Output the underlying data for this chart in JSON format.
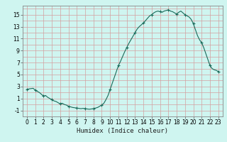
{
  "title": "",
  "xlabel": "Humidex (Indice chaleur)",
  "ylabel": "",
  "bg_color": "#cff5f0",
  "grid_color_minor": "#d4a0a0",
  "line_color": "#1a6b5a",
  "marker_color": "#1a6b5a",
  "xlim": [
    -0.5,
    23.5
  ],
  "ylim": [
    -2,
    16.5
  ],
  "yticks": [
    -1,
    1,
    3,
    5,
    7,
    9,
    11,
    13,
    15
  ],
  "xticks": [
    0,
    1,
    2,
    3,
    4,
    5,
    6,
    7,
    8,
    9,
    10,
    11,
    12,
    13,
    14,
    15,
    16,
    17,
    18,
    19,
    20,
    21,
    22,
    23
  ],
  "x": [
    0,
    0.25,
    0.5,
    0.75,
    1,
    1.25,
    1.5,
    1.75,
    2,
    2.25,
    2.5,
    2.75,
    3,
    3.25,
    3.5,
    3.75,
    4,
    4.25,
    4.5,
    4.75,
    5,
    5.25,
    5.5,
    5.75,
    6,
    6.25,
    6.5,
    6.75,
    7,
    7.25,
    7.5,
    7.75,
    8,
    8.25,
    8.5,
    8.75,
    9,
    9.25,
    9.5,
    9.75,
    10,
    10.25,
    10.5,
    10.75,
    11,
    11.25,
    11.5,
    11.75,
    12,
    12.25,
    12.5,
    12.75,
    13,
    13.25,
    13.5,
    13.75,
    14,
    14.25,
    14.5,
    14.75,
    15,
    15.25,
    15.5,
    15.75,
    16,
    16.25,
    16.5,
    16.75,
    17,
    17.25,
    17.5,
    17.75,
    18,
    18.25,
    18.5,
    18.75,
    19,
    19.25,
    19.5,
    19.75,
    20,
    20.25,
    20.5,
    20.75,
    21,
    21.25,
    21.5,
    21.75,
    22,
    22.25,
    22.5,
    22.75,
    23
  ],
  "y": [
    2.5,
    2.6,
    2.65,
    2.7,
    2.4,
    2.2,
    2.0,
    1.7,
    1.4,
    1.5,
    1.2,
    1.0,
    0.8,
    0.6,
    0.5,
    0.3,
    0.1,
    0.2,
    0.0,
    -0.1,
    -0.3,
    -0.4,
    -0.5,
    -0.55,
    -0.6,
    -0.65,
    -0.7,
    -0.65,
    -0.7,
    -0.75,
    -0.8,
    -0.75,
    -0.7,
    -0.6,
    -0.5,
    -0.3,
    -0.1,
    0.2,
    0.8,
    1.5,
    2.5,
    3.5,
    4.5,
    5.5,
    6.5,
    7.2,
    8.0,
    8.8,
    9.5,
    10.2,
    10.8,
    11.4,
    12.0,
    12.6,
    13.0,
    13.3,
    13.6,
    14.0,
    14.4,
    14.8,
    15.0,
    15.3,
    15.5,
    15.6,
    15.5,
    15.4,
    15.6,
    15.7,
    15.8,
    15.6,
    15.5,
    15.3,
    15.1,
    15.4,
    15.6,
    15.3,
    15.0,
    14.8,
    14.6,
    14.2,
    13.5,
    12.5,
    11.5,
    10.8,
    10.3,
    9.5,
    8.5,
    7.5,
    6.5,
    6.0,
    5.8,
    5.7,
    5.5
  ],
  "marker_x": [
    0,
    1,
    2,
    3,
    4,
    5,
    6,
    7,
    8,
    9,
    10,
    11,
    12,
    13,
    14,
    15,
    16,
    17,
    18,
    19,
    20,
    21,
    22,
    23
  ],
  "marker_y": [
    2.5,
    2.4,
    1.4,
    0.8,
    0.1,
    -0.3,
    -0.6,
    -0.7,
    -0.7,
    -0.1,
    2.5,
    6.5,
    9.5,
    12.0,
    13.6,
    15.0,
    15.5,
    15.8,
    15.1,
    15.0,
    13.5,
    10.3,
    6.5,
    5.5
  ]
}
